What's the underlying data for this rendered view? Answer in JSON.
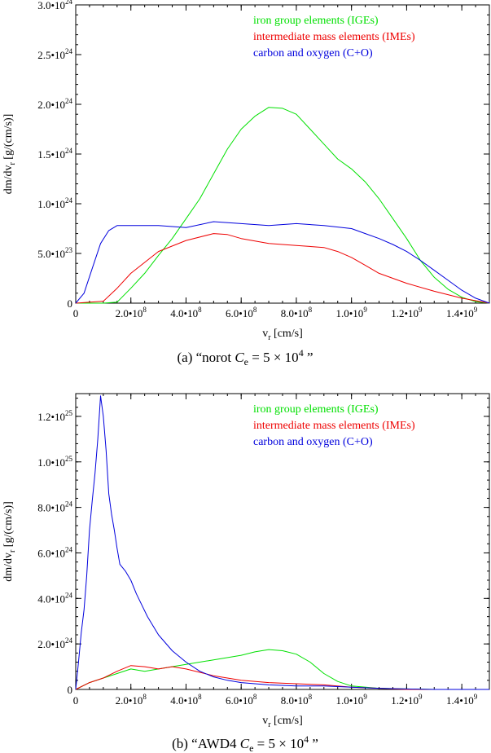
{
  "chart_data": [
    {
      "type": "line",
      "panel": "a",
      "caption": {
        "prefix": "(a)  “norot ",
        "sym": "C",
        "sub": "e",
        "eq": " = 5 × 10",
        "sup": "4",
        "suffix": "   ”"
      },
      "xlabel": {
        "base": "v",
        "sub": "r",
        "rest": " [cm/s]"
      },
      "ylabel": {
        "pre": "dm/dv",
        "sub": "r",
        "rest": " [g/(cm/s)]"
      },
      "xlim": [
        0,
        1500000000.0
      ],
      "ylim": [
        0,
        3e+24
      ],
      "xticks": [
        {
          "value": 0,
          "mant": "0",
          "exp": ""
        },
        {
          "value": 200000000.0,
          "mant": "2.0•10",
          "exp": "8"
        },
        {
          "value": 400000000.0,
          "mant": "4.0•10",
          "exp": "8"
        },
        {
          "value": 600000000.0,
          "mant": "6.0•10",
          "exp": "8"
        },
        {
          "value": 800000000.0,
          "mant": "8.0•10",
          "exp": "8"
        },
        {
          "value": 1000000000.0,
          "mant": "1.0•10",
          "exp": "9"
        },
        {
          "value": 1200000000.0,
          "mant": "1.2•10",
          "exp": "9"
        },
        {
          "value": 1400000000.0,
          "mant": "1.4•10",
          "exp": "9"
        }
      ],
      "yticks": [
        {
          "value": 0,
          "mant": "0",
          "exp": ""
        },
        {
          "value": 5e+23,
          "mant": "5.0•10",
          "exp": "23"
        },
        {
          "value": 1e+24,
          "mant": "1.0•10",
          "exp": "24"
        },
        {
          "value": 1.5e+24,
          "mant": "1.5•10",
          "exp": "24"
        },
        {
          "value": 2e+24,
          "mant": "2.0•10",
          "exp": "24"
        },
        {
          "value": 2.5e+24,
          "mant": "2.5•10",
          "exp": "24"
        },
        {
          "value": 3e+24,
          "mant": "3.0•10",
          "exp": "24"
        }
      ],
      "legend_position": "top-right",
      "series": [
        {
          "name": "iron group elements  (IGEs)",
          "color": "#00e000",
          "x": [
            0,
            100000000.0,
            150000000.0,
            200000000.0,
            250000000.0,
            300000000.0,
            350000000.0,
            400000000.0,
            450000000.0,
            500000000.0,
            550000000.0,
            600000000.0,
            650000000.0,
            700000000.0,
            750000000.0,
            800000000.0,
            850000000.0,
            900000000.0,
            950000000.0,
            1000000000.0,
            1050000000.0,
            1100000000.0,
            1150000000.0,
            1200000000.0,
            1250000000.0,
            1300000000.0,
            1350000000.0,
            1400000000.0,
            1450000000.0,
            1500000000.0
          ],
          "y": [
            0,
            0,
            1e+22,
            1.5e+23,
            3e+23,
            4.8e+23,
            6.5e+23,
            8.5e+23,
            1.05e+24,
            1.3e+24,
            1.55e+24,
            1.75e+24,
            1.88e+24,
            1.97e+24,
            1.96e+24,
            1.9e+24,
            1.75e+24,
            1.6e+24,
            1.45e+24,
            1.35e+24,
            1.22e+24,
            1.05e+24,
            8.5e+23,
            6.5e+23,
            4.3e+23,
            2.6e+23,
            1.4e+23,
            6e+22,
            1.5e+22,
            0
          ]
        },
        {
          "name": "intermediate mass elements  (IMEs)",
          "color": "#ee0000",
          "x": [
            0,
            100000000.0,
            150000000.0,
            200000000.0,
            300000000.0,
            400000000.0,
            500000000.0,
            550000000.0,
            600000000.0,
            700000000.0,
            800000000.0,
            900000000.0,
            950000000.0,
            1000000000.0,
            1050000000.0,
            1100000000.0,
            1200000000.0,
            1300000000.0,
            1400000000.0,
            1500000000.0
          ],
          "y": [
            0,
            2e+22,
            1.5e+23,
            3e+23,
            5.2e+23,
            6.3e+23,
            7e+23,
            6.9e+23,
            6.5e+23,
            6e+23,
            5.8e+23,
            5.6e+23,
            5.2e+23,
            4.6e+23,
            3.8e+23,
            3e+23,
            2e+23,
            1.2e+23,
            5e+22,
            0
          ]
        },
        {
          "name": "carbon and oxygen  (C+O)",
          "color": "#0000dd",
          "x": [
            0,
            30000000.0,
            60000000.0,
            90000000.0,
            120000000.0,
            150000000.0,
            200000000.0,
            300000000.0,
            400000000.0,
            500000000.0,
            600000000.0,
            700000000.0,
            800000000.0,
            900000000.0,
            1000000000.0,
            1050000000.0,
            1100000000.0,
            1150000000.0,
            1200000000.0,
            1250000000.0,
            1300000000.0,
            1350000000.0,
            1400000000.0,
            1450000000.0,
            1500000000.0
          ],
          "y": [
            0,
            1e+23,
            3.5e+23,
            6e+23,
            7.3e+23,
            7.8e+23,
            7.8e+23,
            7.8e+23,
            7.6e+23,
            8.2e+23,
            8e+23,
            7.8e+23,
            8e+23,
            7.8e+23,
            7.5e+23,
            7e+23,
            6.5e+23,
            5.9e+23,
            5.2e+23,
            4.3e+23,
            3.3e+23,
            2.3e+23,
            1.3e+23,
            5e+22,
            0
          ]
        }
      ]
    },
    {
      "type": "line",
      "panel": "b",
      "caption": {
        "prefix": "(b)  “AWD4 ",
        "sym": "C",
        "sub": "e",
        "eq": " = 5 × 10",
        "sup": "4",
        "suffix": "   ”"
      },
      "xlabel": {
        "base": "v",
        "sub": "r",
        "rest": " [cm/s]"
      },
      "ylabel": {
        "pre": "dm/dv",
        "sub": "r",
        "rest": " [g/(cm/s)]"
      },
      "xlim": [
        0,
        1500000000.0
      ],
      "ylim": [
        0,
        1.3e+25
      ],
      "xticks": [
        {
          "value": 0,
          "mant": "0",
          "exp": ""
        },
        {
          "value": 200000000.0,
          "mant": "2.0•10",
          "exp": "8"
        },
        {
          "value": 400000000.0,
          "mant": "4.0•10",
          "exp": "8"
        },
        {
          "value": 600000000.0,
          "mant": "6.0•10",
          "exp": "8"
        },
        {
          "value": 800000000.0,
          "mant": "8.0•10",
          "exp": "8"
        },
        {
          "value": 1000000000.0,
          "mant": "1.0•10",
          "exp": "9"
        },
        {
          "value": 1200000000.0,
          "mant": "1.2•10",
          "exp": "9"
        },
        {
          "value": 1400000000.0,
          "mant": "1.4•10",
          "exp": "9"
        }
      ],
      "yticks": [
        {
          "value": 0,
          "mant": "0",
          "exp": ""
        },
        {
          "value": 2e+24,
          "mant": "2.0•10",
          "exp": "24"
        },
        {
          "value": 4e+24,
          "mant": "4.0•10",
          "exp": "24"
        },
        {
          "value": 6e+24,
          "mant": "6.0•10",
          "exp": "24"
        },
        {
          "value": 8e+24,
          "mant": "8.0•10",
          "exp": "24"
        },
        {
          "value": 1e+25,
          "mant": "1.0•10",
          "exp": "25"
        },
        {
          "value": 1.2e+25,
          "mant": "1.2•10",
          "exp": "25"
        }
      ],
      "legend_position": "top-right",
      "series": [
        {
          "name": "iron group elements  (IGEs)",
          "color": "#00e000",
          "x": [
            0,
            50000000.0,
            100000000.0,
            150000000.0,
            200000000.0,
            250000000.0,
            300000000.0,
            400000000.0,
            500000000.0,
            600000000.0,
            650000000.0,
            700000000.0,
            750000000.0,
            800000000.0,
            850000000.0,
            900000000.0,
            950000000.0,
            1000000000.0,
            1100000000.0,
            1200000000.0,
            1300000000.0,
            1400000000.0,
            1500000000.0
          ],
          "y": [
            0,
            3e+23,
            5e+23,
            7e+23,
            9e+23,
            8e+23,
            9e+23,
            1.1e+24,
            1.3e+24,
            1.5e+24,
            1.65e+24,
            1.75e+24,
            1.7e+24,
            1.55e+24,
            1.2e+24,
            7e+23,
            3.5e+23,
            1.5e+23,
            5e+22,
            2e+22,
            0,
            0,
            0
          ]
        },
        {
          "name": "intermediate mass elements  (IMEs)",
          "color": "#ee0000",
          "x": [
            0,
            50000000.0,
            100000000.0,
            150000000.0,
            200000000.0,
            250000000.0,
            300000000.0,
            350000000.0,
            400000000.0,
            500000000.0,
            600000000.0,
            700000000.0,
            800000000.0,
            900000000.0,
            1000000000.0,
            1100000000.0,
            1200000000.0,
            1300000000.0,
            1400000000.0,
            1500000000.0
          ],
          "y": [
            0,
            3e+23,
            5e+23,
            8e+23,
            1.05e+24,
            1e+24,
            9e+23,
            1e+24,
            9e+23,
            6e+23,
            4e+23,
            3e+23,
            2.5e+23,
            2e+23,
            1e+23,
            5e+22,
            0,
            0,
            0,
            0
          ]
        },
        {
          "name": "carbon and oxygen  (C+O)",
          "color": "#0000dd",
          "x": [
            0,
            10000000.0,
            20000000.0,
            30000000.0,
            40000000.0,
            50000000.0,
            60000000.0,
            70000000.0,
            80000000.0,
            90000000.0,
            100000000.0,
            110000000.0,
            120000000.0,
            130000000.0,
            140000000.0,
            150000000.0,
            160000000.0,
            180000000.0,
            200000000.0,
            220000000.0,
            240000000.0,
            260000000.0,
            280000000.0,
            300000000.0,
            350000000.0,
            400000000.0,
            450000000.0,
            500000000.0,
            550000000.0,
            600000000.0,
            700000000.0,
            800000000.0,
            900000000.0,
            1000000000.0,
            1100000000.0,
            1200000000.0,
            1300000000.0,
            1400000000.0,
            1500000000.0
          ],
          "y": [
            0,
            1.2e+24,
            2.5e+24,
            3.5e+24,
            5e+24,
            7e+24,
            8.3e+24,
            9.5e+24,
            1.1e+25,
            1.29e+25,
            1.2e+25,
            1.05e+25,
            8.6e+24,
            7.7e+24,
            7e+24,
            6.2e+24,
            5.5e+24,
            5.2e+24,
            4.8e+24,
            4.2e+24,
            3.7e+24,
            3.2e+24,
            2.8e+24,
            2.4e+24,
            1.7e+24,
            1.2e+24,
            8e+23,
            5.5e+23,
            4e+23,
            3e+23,
            2e+23,
            1.5e+23,
            1.5e+23,
            1e+23,
            5e+22,
            2e+22,
            0,
            0,
            0
          ]
        }
      ]
    }
  ]
}
